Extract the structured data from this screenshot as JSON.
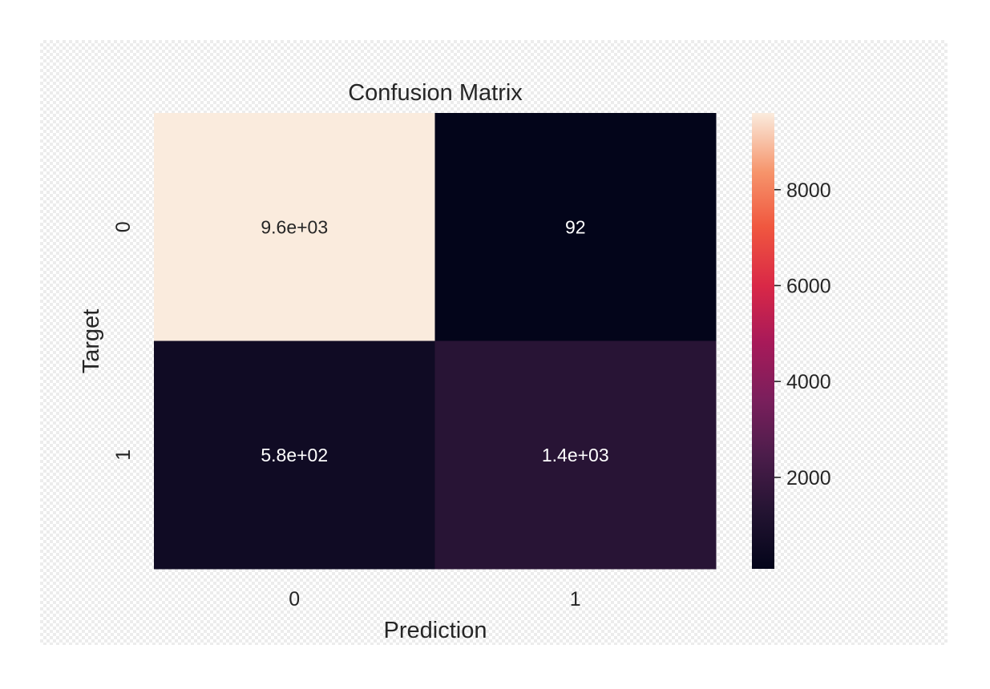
{
  "chart_data": {
    "type": "heatmap",
    "title": "Confusion Matrix",
    "xlabel": "Prediction",
    "ylabel": "Target",
    "x_categories": [
      "0",
      "1"
    ],
    "y_categories": [
      "0",
      "1"
    ],
    "values": [
      [
        9600,
        92
      ],
      [
        580,
        1400
      ]
    ],
    "annotations": [
      [
        "9.6e+03",
        "92"
      ],
      [
        "5.8e+02",
        "1.4e+03"
      ]
    ],
    "colormap": "rocket",
    "colorbar": {
      "vmin": 92,
      "vmax": 9600,
      "ticks": [
        2000,
        4000,
        6000,
        8000
      ],
      "tick_labels": [
        "2000",
        "4000",
        "6000",
        "8000"
      ]
    }
  }
}
